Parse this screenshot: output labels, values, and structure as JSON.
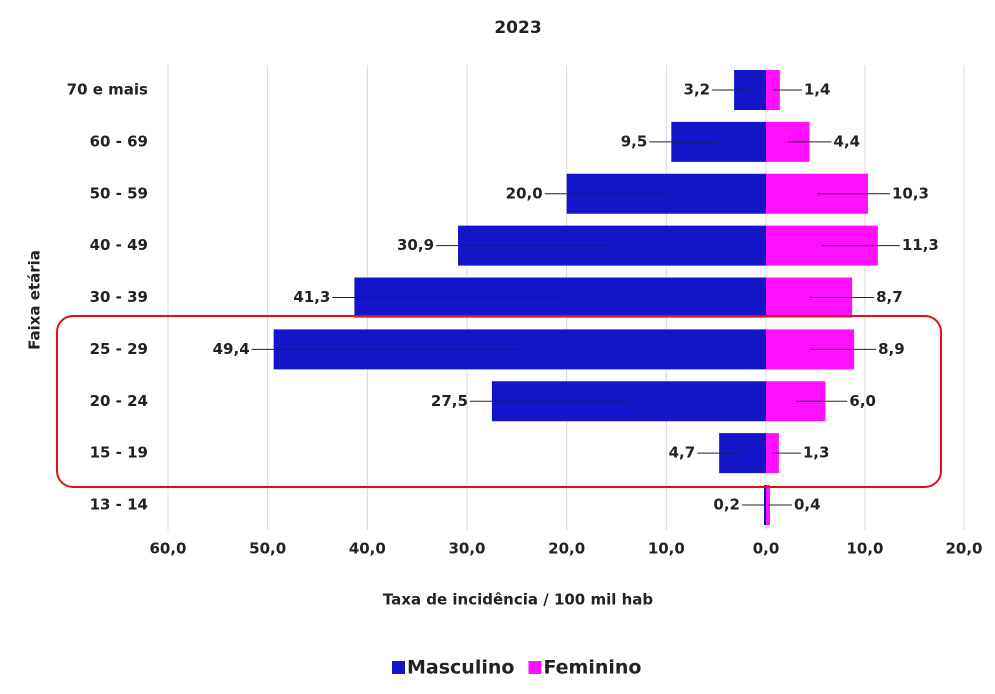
{
  "chart_data": {
    "type": "pyramid",
    "title": "2023",
    "x_label": "Taxa de incidência / 100 mil hab",
    "y_label": "Faixa etária",
    "categories": [
      "70 e mais",
      "60 - 69",
      "50 - 59",
      "40 - 49",
      "30 - 39",
      "25 - 29",
      "20 - 24",
      "15 - 19",
      "13 - 14"
    ],
    "series": [
      {
        "name": "Masculino",
        "color": "#1414c8",
        "side": "left",
        "values": [
          3.2,
          9.5,
          20.0,
          30.9,
          41.3,
          49.4,
          27.5,
          4.7,
          0.2
        ],
        "value_labels": [
          "3,2",
          "9,5",
          "20,0",
          "30,9",
          "41,3",
          "49,4",
          "27,5",
          "4,7",
          "0,2"
        ]
      },
      {
        "name": "Feminino",
        "color": "#ff10ff",
        "side": "right",
        "values": [
          1.4,
          4.4,
          10.3,
          11.3,
          8.7,
          8.9,
          6.0,
          1.3,
          0.4
        ],
        "value_labels": [
          "1,4",
          "4,4",
          "10,3",
          "11,3",
          "8,7",
          "8,9",
          "6,0",
          "1,3",
          "0,4"
        ]
      }
    ],
    "xlim_left": [
      0,
      60
    ],
    "xlim_right": [
      0,
      20
    ],
    "xticks_left": [
      {
        "value": 60,
        "label": "60,0"
      },
      {
        "value": 50,
        "label": "50,0"
      },
      {
        "value": 40,
        "label": "40,0"
      },
      {
        "value": 30,
        "label": "30,0"
      },
      {
        "value": 20,
        "label": "20,0"
      },
      {
        "value": 10,
        "label": "10,0"
      },
      {
        "value": 0,
        "label": "0,0"
      }
    ],
    "xticks_right": [
      {
        "value": 10,
        "label": "10,0"
      },
      {
        "value": 20,
        "label": "20,0"
      }
    ],
    "grid": true,
    "legend": "bottom"
  }
}
